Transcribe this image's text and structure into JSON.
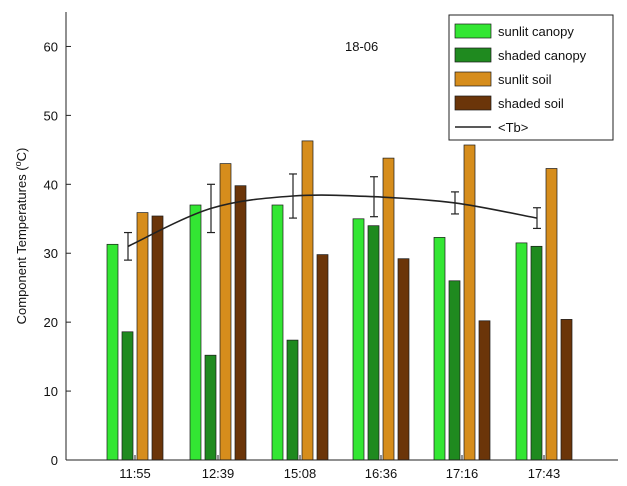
{
  "chart_data": {
    "type": "bar",
    "categories": [
      "11:55",
      "12:39",
      "15:08",
      "16:36",
      "17:16",
      "17:43"
    ],
    "series": [
      {
        "name": "sunlit canopy",
        "color": "#33e633",
        "values": [
          31.3,
          37.0,
          37.0,
          35.0,
          32.3,
          31.5
        ]
      },
      {
        "name": "shaded canopy",
        "color": "#1f8a1f",
        "values": [
          18.6,
          15.2,
          17.4,
          34.0,
          26.0,
          31.0
        ]
      },
      {
        "name": "sunlit soil",
        "color": "#d68d1c",
        "values": [
          35.9,
          43.0,
          46.3,
          43.8,
          45.7,
          42.3
        ]
      },
      {
        "name": "shaded soil",
        "color": "#6b3509",
        "values": [
          35.4,
          39.8,
          29.8,
          29.2,
          20.2,
          20.4
        ]
      }
    ],
    "line": {
      "name": "<Tb>",
      "color": "#222222",
      "values": [
        31.0,
        36.5,
        38.3,
        38.2,
        37.3,
        35.1
      ],
      "error": [
        2.0,
        3.5,
        3.2,
        2.9,
        1.6,
        1.5
      ]
    },
    "annotation": "18-06",
    "ylabel": "Component Temperatures (°C)",
    "ylim": [
      0,
      65
    ],
    "yticks": [
      0,
      10,
      20,
      30,
      40,
      50,
      60
    ],
    "grid": false,
    "legend_position": "top-right"
  }
}
